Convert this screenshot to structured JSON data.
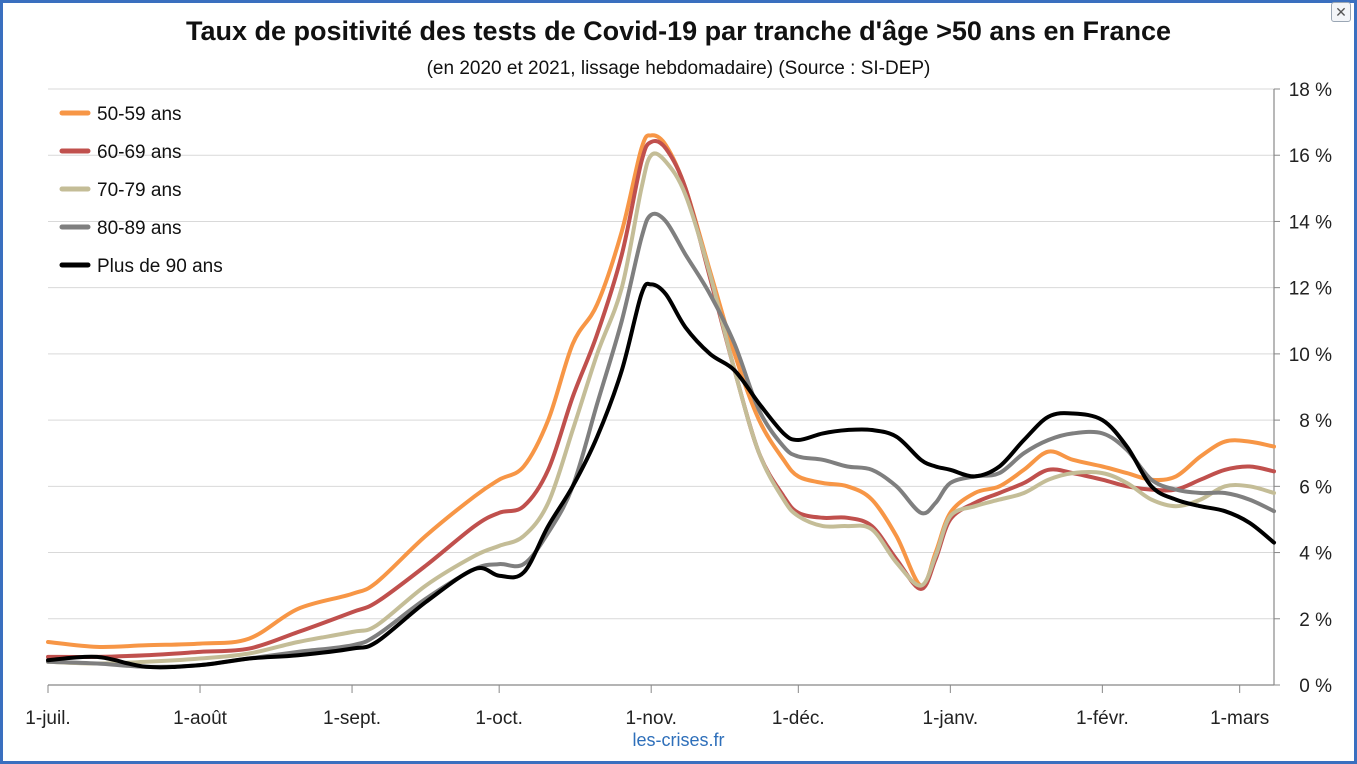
{
  "title": "Taux de positivité des tests de Covid-19 par tranche d'âge >50 ans en France",
  "subtitle": "(en 2020 et 2021, lissage hebdomadaire) (Source : SI-DEP)",
  "source_label": "les-crises.fr",
  "chart_data": {
    "type": "line",
    "title": "Taux de positivité des tests de Covid-19 par tranche d'âge >50 ans en France",
    "subtitle": "(en 2020 et 2021, lissage hebdomadaire) (Source : SI-DEP)",
    "xlabel": "",
    "ylabel": "",
    "x_axis": {
      "unit": "day",
      "min": "2020-07-01",
      "max": "2021-03-08",
      "tick_labels": [
        "1-juil.",
        "1-août",
        "1-sept.",
        "1-oct.",
        "1-nov.",
        "1-déc.",
        "1-janv.",
        "1-févr.",
        "1-mars"
      ],
      "tick_dates": [
        "2020-07-01",
        "2020-08-01",
        "2020-09-01",
        "2020-10-01",
        "2020-11-01",
        "2020-12-01",
        "2021-01-01",
        "2021-02-01",
        "2021-03-01"
      ]
    },
    "y_axis": {
      "position": "right",
      "min": 0,
      "max": 18,
      "step": 2,
      "tick_labels": [
        "0 %",
        "2 %",
        "4 %",
        "6 %",
        "8 %",
        "10 %",
        "12 %",
        "14 %",
        "16 %",
        "18 %"
      ]
    },
    "grid": "horizontal",
    "legend": "top-left",
    "series": [
      {
        "name": "50-59 ans",
        "color": "#f79646",
        "points": [
          [
            "2020-07-01",
            1.3
          ],
          [
            "2020-07-11",
            1.15
          ],
          [
            "2020-07-21",
            1.2
          ],
          [
            "2020-08-01",
            1.25
          ],
          [
            "2020-08-11",
            1.4
          ],
          [
            "2020-08-21",
            2.3
          ],
          [
            "2020-09-01",
            2.75
          ],
          [
            "2020-09-06",
            3.1
          ],
          [
            "2020-09-16",
            4.5
          ],
          [
            "2020-09-26",
            5.7
          ],
          [
            "2020-10-01",
            6.2
          ],
          [
            "2020-10-06",
            6.6
          ],
          [
            "2020-10-11",
            8.0
          ],
          [
            "2020-10-16",
            10.3
          ],
          [
            "2020-10-21",
            11.5
          ],
          [
            "2020-10-26",
            13.7
          ],
          [
            "2020-10-30",
            16.2
          ],
          [
            "2020-11-01",
            16.6
          ],
          [
            "2020-11-04",
            16.3
          ],
          [
            "2020-11-08",
            15.0
          ],
          [
            "2020-11-13",
            12.5
          ],
          [
            "2020-11-18",
            10.0
          ],
          [
            "2020-11-23",
            8.0
          ],
          [
            "2020-11-28",
            6.8
          ],
          [
            "2020-12-01",
            6.3
          ],
          [
            "2020-12-06",
            6.1
          ],
          [
            "2020-12-11",
            6.0
          ],
          [
            "2020-12-16",
            5.6
          ],
          [
            "2020-12-21",
            4.5
          ],
          [
            "2020-12-26",
            3.0
          ],
          [
            "2020-12-29",
            4.0
          ],
          [
            "2021-01-01",
            5.2
          ],
          [
            "2021-01-06",
            5.8
          ],
          [
            "2021-01-11",
            6.0
          ],
          [
            "2021-01-16",
            6.5
          ],
          [
            "2021-01-21",
            7.05
          ],
          [
            "2021-01-26",
            6.8
          ],
          [
            "2021-02-01",
            6.6
          ],
          [
            "2021-02-06",
            6.4
          ],
          [
            "2021-02-11",
            6.2
          ],
          [
            "2021-02-16",
            6.3
          ],
          [
            "2021-02-21",
            6.9
          ],
          [
            "2021-02-26",
            7.35
          ],
          [
            "2021-03-03",
            7.35
          ],
          [
            "2021-03-08",
            7.2
          ]
        ]
      },
      {
        "name": "60-69 ans",
        "color": "#c0504d",
        "points": [
          [
            "2020-07-01",
            0.85
          ],
          [
            "2020-07-11",
            0.85
          ],
          [
            "2020-07-21",
            0.9
          ],
          [
            "2020-08-01",
            1.0
          ],
          [
            "2020-08-11",
            1.1
          ],
          [
            "2020-08-21",
            1.6
          ],
          [
            "2020-09-01",
            2.2
          ],
          [
            "2020-09-06",
            2.5
          ],
          [
            "2020-09-16",
            3.6
          ],
          [
            "2020-09-26",
            4.8
          ],
          [
            "2020-10-01",
            5.2
          ],
          [
            "2020-10-06",
            5.4
          ],
          [
            "2020-10-11",
            6.5
          ],
          [
            "2020-10-16",
            8.7
          ],
          [
            "2020-10-21",
            10.6
          ],
          [
            "2020-10-26",
            13.0
          ],
          [
            "2020-10-30",
            15.8
          ],
          [
            "2020-11-01",
            16.4
          ],
          [
            "2020-11-04",
            16.2
          ],
          [
            "2020-11-08",
            15.0
          ],
          [
            "2020-11-13",
            12.3
          ],
          [
            "2020-11-18",
            9.5
          ],
          [
            "2020-11-23",
            7.0
          ],
          [
            "2020-11-28",
            5.7
          ],
          [
            "2020-12-01",
            5.2
          ],
          [
            "2020-12-06",
            5.05
          ],
          [
            "2020-12-11",
            5.05
          ],
          [
            "2020-12-16",
            4.8
          ],
          [
            "2020-12-21",
            3.8
          ],
          [
            "2020-12-26",
            2.9
          ],
          [
            "2020-12-29",
            3.8
          ],
          [
            "2021-01-01",
            5.0
          ],
          [
            "2021-01-06",
            5.5
          ],
          [
            "2021-01-11",
            5.8
          ],
          [
            "2021-01-16",
            6.1
          ],
          [
            "2021-01-21",
            6.5
          ],
          [
            "2021-01-26",
            6.4
          ],
          [
            "2021-02-01",
            6.2
          ],
          [
            "2021-02-06",
            6.0
          ],
          [
            "2021-02-11",
            5.9
          ],
          [
            "2021-02-16",
            5.9
          ],
          [
            "2021-02-21",
            6.2
          ],
          [
            "2021-02-26",
            6.5
          ],
          [
            "2021-03-03",
            6.6
          ],
          [
            "2021-03-08",
            6.45
          ]
        ]
      },
      {
        "name": "70-79 ans",
        "color": "#c4bd97",
        "points": [
          [
            "2020-07-01",
            0.7
          ],
          [
            "2020-07-11",
            0.65
          ],
          [
            "2020-07-21",
            0.7
          ],
          [
            "2020-08-01",
            0.8
          ],
          [
            "2020-08-11",
            0.95
          ],
          [
            "2020-08-21",
            1.3
          ],
          [
            "2020-09-01",
            1.6
          ],
          [
            "2020-09-06",
            1.8
          ],
          [
            "2020-09-16",
            3.0
          ],
          [
            "2020-09-26",
            3.9
          ],
          [
            "2020-10-01",
            4.2
          ],
          [
            "2020-10-06",
            4.5
          ],
          [
            "2020-10-11",
            5.5
          ],
          [
            "2020-10-16",
            7.7
          ],
          [
            "2020-10-21",
            10.0
          ],
          [
            "2020-10-26",
            12.0
          ],
          [
            "2020-10-30",
            15.0
          ],
          [
            "2020-11-01",
            16.0
          ],
          [
            "2020-11-04",
            15.8
          ],
          [
            "2020-11-08",
            14.8
          ],
          [
            "2020-11-13",
            12.4
          ],
          [
            "2020-11-18",
            9.5
          ],
          [
            "2020-11-23",
            7.0
          ],
          [
            "2020-11-28",
            5.6
          ],
          [
            "2020-12-01",
            5.1
          ],
          [
            "2020-12-06",
            4.8
          ],
          [
            "2020-12-11",
            4.8
          ],
          [
            "2020-12-16",
            4.7
          ],
          [
            "2020-12-21",
            3.7
          ],
          [
            "2020-12-26",
            3.0
          ],
          [
            "2020-12-29",
            3.9
          ],
          [
            "2021-01-01",
            5.1
          ],
          [
            "2021-01-06",
            5.4
          ],
          [
            "2021-01-11",
            5.6
          ],
          [
            "2021-01-16",
            5.8
          ],
          [
            "2021-01-21",
            6.2
          ],
          [
            "2021-01-26",
            6.4
          ],
          [
            "2021-02-01",
            6.4
          ],
          [
            "2021-02-06",
            6.1
          ],
          [
            "2021-02-11",
            5.6
          ],
          [
            "2021-02-16",
            5.4
          ],
          [
            "2021-02-21",
            5.6
          ],
          [
            "2021-02-26",
            6.0
          ],
          [
            "2021-03-03",
            6.0
          ],
          [
            "2021-03-08",
            5.8
          ]
        ]
      },
      {
        "name": "80-89 ans",
        "color": "#7f7f7f",
        "points": [
          [
            "2020-07-01",
            0.7
          ],
          [
            "2020-07-11",
            0.65
          ],
          [
            "2020-07-21",
            0.55
          ],
          [
            "2020-08-01",
            0.6
          ],
          [
            "2020-08-11",
            0.8
          ],
          [
            "2020-08-21",
            1.0
          ],
          [
            "2020-09-01",
            1.2
          ],
          [
            "2020-09-06",
            1.5
          ],
          [
            "2020-09-16",
            2.6
          ],
          [
            "2020-09-26",
            3.5
          ],
          [
            "2020-10-01",
            3.65
          ],
          [
            "2020-10-06",
            3.65
          ],
          [
            "2020-10-11",
            4.6
          ],
          [
            "2020-10-16",
            6.0
          ],
          [
            "2020-10-21",
            8.5
          ],
          [
            "2020-10-26",
            11.0
          ],
          [
            "2020-10-30",
            13.5
          ],
          [
            "2020-11-01",
            14.2
          ],
          [
            "2020-11-04",
            14.0
          ],
          [
            "2020-11-08",
            13.0
          ],
          [
            "2020-11-13",
            11.8
          ],
          [
            "2020-11-18",
            10.3
          ],
          [
            "2020-11-23",
            8.3
          ],
          [
            "2020-11-28",
            7.2
          ],
          [
            "2020-12-01",
            6.9
          ],
          [
            "2020-12-06",
            6.8
          ],
          [
            "2020-12-11",
            6.6
          ],
          [
            "2020-12-16",
            6.5
          ],
          [
            "2020-12-21",
            6.0
          ],
          [
            "2020-12-26",
            5.2
          ],
          [
            "2020-12-29",
            5.5
          ],
          [
            "2021-01-01",
            6.1
          ],
          [
            "2021-01-06",
            6.3
          ],
          [
            "2021-01-11",
            6.4
          ],
          [
            "2021-01-16",
            7.0
          ],
          [
            "2021-01-21",
            7.4
          ],
          [
            "2021-01-26",
            7.6
          ],
          [
            "2021-02-01",
            7.6
          ],
          [
            "2021-02-06",
            7.1
          ],
          [
            "2021-02-11",
            6.2
          ],
          [
            "2021-02-16",
            5.9
          ],
          [
            "2021-02-21",
            5.8
          ],
          [
            "2021-02-26",
            5.8
          ],
          [
            "2021-03-03",
            5.6
          ],
          [
            "2021-03-08",
            5.25
          ]
        ]
      },
      {
        "name": "Plus de 90 ans",
        "color": "#000000",
        "points": [
          [
            "2020-07-01",
            0.75
          ],
          [
            "2020-07-11",
            0.85
          ],
          [
            "2020-07-21",
            0.55
          ],
          [
            "2020-08-01",
            0.6
          ],
          [
            "2020-08-11",
            0.8
          ],
          [
            "2020-08-21",
            0.9
          ],
          [
            "2020-09-01",
            1.1
          ],
          [
            "2020-09-06",
            1.3
          ],
          [
            "2020-09-16",
            2.5
          ],
          [
            "2020-09-26",
            3.5
          ],
          [
            "2020-10-01",
            3.3
          ],
          [
            "2020-10-06",
            3.4
          ],
          [
            "2020-10-11",
            4.8
          ],
          [
            "2020-10-16",
            6.0
          ],
          [
            "2020-10-21",
            7.5
          ],
          [
            "2020-10-26",
            9.5
          ],
          [
            "2020-10-30",
            11.8
          ],
          [
            "2020-11-01",
            12.1
          ],
          [
            "2020-11-04",
            11.8
          ],
          [
            "2020-11-08",
            10.8
          ],
          [
            "2020-11-13",
            10.0
          ],
          [
            "2020-11-18",
            9.5
          ],
          [
            "2020-11-23",
            8.5
          ],
          [
            "2020-11-28",
            7.6
          ],
          [
            "2020-12-01",
            7.4
          ],
          [
            "2020-12-06",
            7.6
          ],
          [
            "2020-12-11",
            7.7
          ],
          [
            "2020-12-16",
            7.7
          ],
          [
            "2020-12-21",
            7.5
          ],
          [
            "2020-12-26",
            6.8
          ],
          [
            "2020-12-29",
            6.6
          ],
          [
            "2021-01-01",
            6.5
          ],
          [
            "2021-01-06",
            6.3
          ],
          [
            "2021-01-11",
            6.6
          ],
          [
            "2021-01-16",
            7.4
          ],
          [
            "2021-01-21",
            8.1
          ],
          [
            "2021-01-26",
            8.2
          ],
          [
            "2021-02-01",
            8.0
          ],
          [
            "2021-02-06",
            7.2
          ],
          [
            "2021-02-11",
            6.0
          ],
          [
            "2021-02-16",
            5.6
          ],
          [
            "2021-02-21",
            5.4
          ],
          [
            "2021-02-26",
            5.25
          ],
          [
            "2021-03-03",
            4.9
          ],
          [
            "2021-03-08",
            4.3
          ]
        ]
      }
    ]
  }
}
